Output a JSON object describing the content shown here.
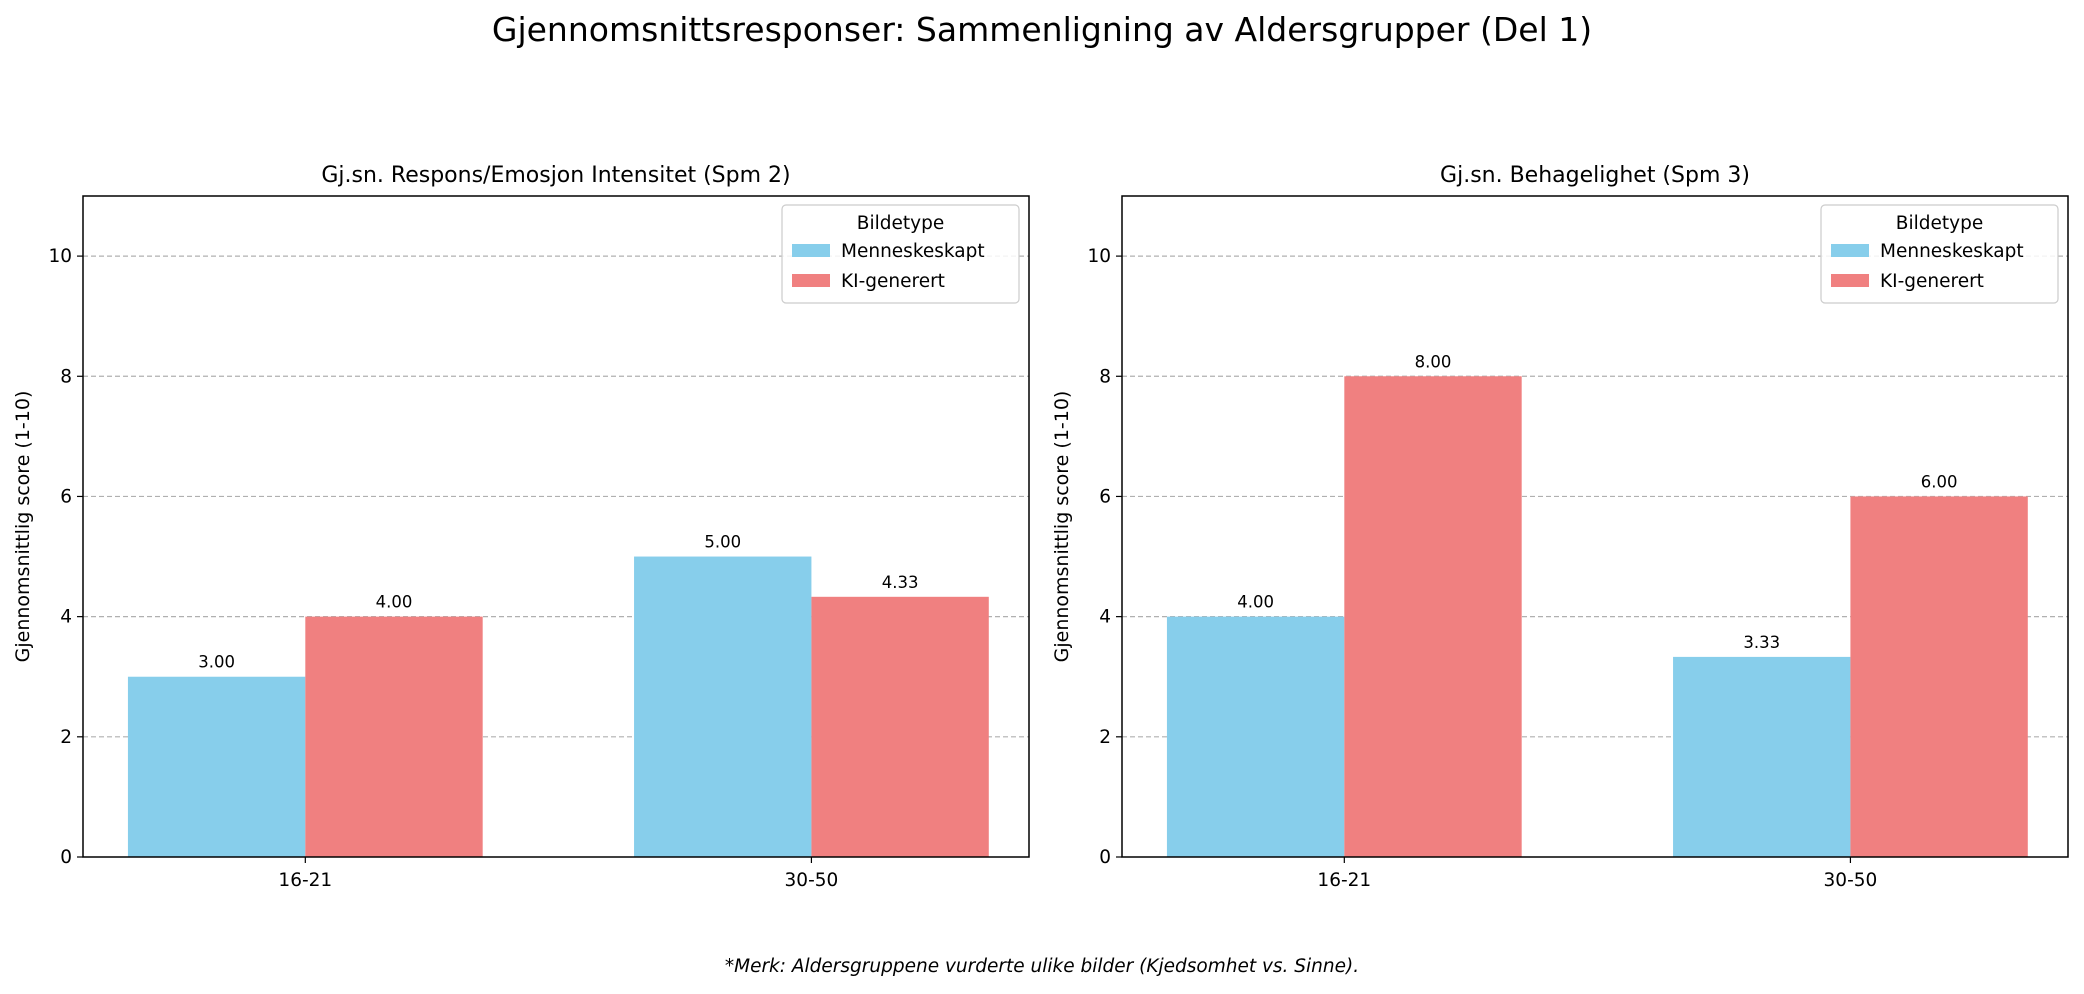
{
  "figure": {
    "title": "Gjennomsnittsresponser: Sammenligning av Aldersgrupper (Del 1)",
    "footnote": "*Merk: Aldersgruppene vurderte ulike bilder (Kjedsomhet vs. Sinne)."
  },
  "colors": {
    "Menneskeskapt": "#87CEEB",
    "KI-generert": "#F08080",
    "grid": "#b0b0b0",
    "axis": "#000000"
  },
  "chart_data": [
    {
      "type": "bar",
      "title": "Gj.sn. Respons/Emosjon Intensitet (Spm 2)",
      "xlabel": "",
      "ylabel": "Gjennomsnittlig score (1-10)",
      "categories": [
        "16-21",
        "30-50"
      ],
      "series": [
        {
          "name": "Menneskeskapt",
          "values": [
            3.0,
            5.0
          ],
          "labels": [
            "3.00",
            "5.00"
          ]
        },
        {
          "name": "KI-generert",
          "values": [
            4.0,
            4.33
          ],
          "labels": [
            "4.00",
            "4.33"
          ]
        }
      ],
      "ylim": [
        0,
        11
      ],
      "yticks": [
        0,
        2,
        4,
        6,
        8,
        10
      ],
      "grid": "y-dashed",
      "legend": {
        "title": "Bildetype",
        "placement": "upper right"
      }
    },
    {
      "type": "bar",
      "title": "Gj.sn. Behagelighet (Spm 3)",
      "xlabel": "",
      "ylabel": "Gjennomsnittlig score (1-10)",
      "categories": [
        "16-21",
        "30-50"
      ],
      "series": [
        {
          "name": "Menneskeskapt",
          "values": [
            4.0,
            3.33
          ],
          "labels": [
            "4.00",
            "3.33"
          ]
        },
        {
          "name": "KI-generert",
          "values": [
            8.0,
            6.0
          ],
          "labels": [
            "8.00",
            "6.00"
          ]
        }
      ],
      "ylim": [
        0,
        11
      ],
      "yticks": [
        0,
        2,
        4,
        6,
        8,
        10
      ],
      "grid": "y-dashed",
      "legend": {
        "title": "Bildetype",
        "placement": "upper right"
      }
    }
  ]
}
